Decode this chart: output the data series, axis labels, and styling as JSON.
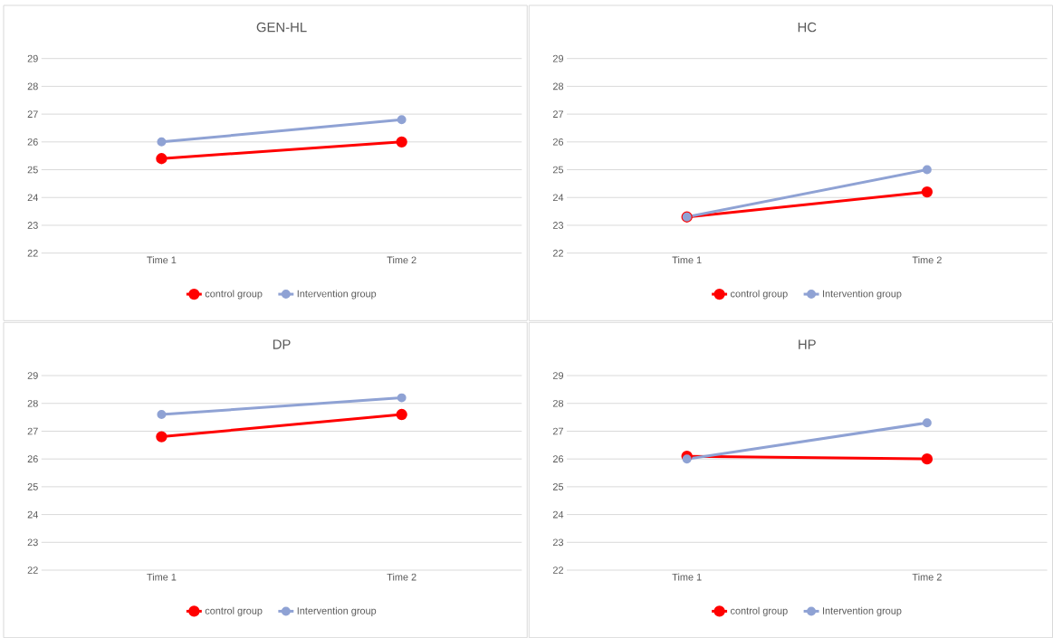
{
  "chart_data": [
    {
      "type": "line",
      "title": "GEN-HL",
      "categories": [
        "Time 1",
        "Time 2"
      ],
      "series": [
        {
          "name": "control group",
          "color": "#ff0000",
          "values": [
            25.4,
            26.0
          ]
        },
        {
          "name": "Intervention group",
          "color": "#8fa2d4",
          "values": [
            26.0,
            26.8
          ]
        }
      ],
      "ylim": [
        22,
        29
      ],
      "yticks": [
        22,
        23,
        24,
        25,
        26,
        27,
        28,
        29
      ],
      "grid": "y",
      "legend": "bottom",
      "marker": "circle",
      "line_style": "solid"
    },
    {
      "type": "line",
      "title": "HC",
      "categories": [
        "Time 1",
        "Time 2"
      ],
      "series": [
        {
          "name": "control group",
          "color": "#ff0000",
          "values": [
            23.3,
            24.2
          ]
        },
        {
          "name": "Intervention group",
          "color": "#8fa2d4",
          "values": [
            23.3,
            25.0
          ]
        }
      ],
      "ylim": [
        22,
        29
      ],
      "yticks": [
        22,
        23,
        24,
        25,
        26,
        27,
        28,
        29
      ],
      "grid": "y",
      "legend": "bottom",
      "marker": "circle",
      "line_style": "solid"
    },
    {
      "type": "line",
      "title": "DP",
      "categories": [
        "Time 1",
        "Time 2"
      ],
      "series": [
        {
          "name": "control group",
          "color": "#ff0000",
          "values": [
            26.8,
            27.6
          ]
        },
        {
          "name": "Intervention group",
          "color": "#8fa2d4",
          "values": [
            27.6,
            28.2
          ]
        }
      ],
      "ylim": [
        22,
        29
      ],
      "yticks": [
        22,
        23,
        24,
        25,
        26,
        27,
        28,
        29
      ],
      "grid": "y",
      "legend": "bottom",
      "marker": "circle",
      "line_style": "solid"
    },
    {
      "type": "line",
      "title": "HP",
      "categories": [
        "Time 1",
        "Time 2"
      ],
      "series": [
        {
          "name": "control group",
          "color": "#ff0000",
          "values": [
            26.1,
            26.0
          ]
        },
        {
          "name": "Intervention group",
          "color": "#8fa2d4",
          "values": [
            26.0,
            27.3
          ]
        }
      ],
      "ylim": [
        22,
        29
      ],
      "yticks": [
        22,
        23,
        24,
        25,
        26,
        27,
        28,
        29
      ],
      "grid": "y",
      "legend": "bottom",
      "marker": "circle",
      "line_style": "solid"
    }
  ]
}
